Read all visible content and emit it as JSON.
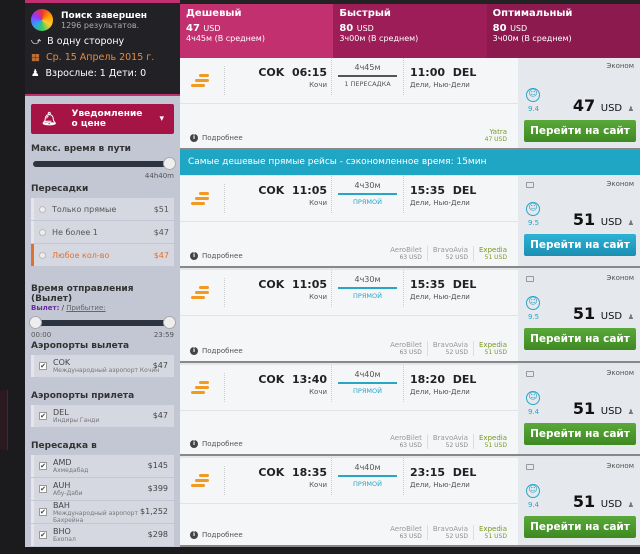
{
  "sidebar": {
    "status_title": "Поиск завершен",
    "status_sub": "1296 результатов.",
    "trip_type": "В одну сторону",
    "date": "Ср. 15 Апрель 2015 г.",
    "passengers": "Взрослые: 1 Дети: 0",
    "notify_label": "Уведомление о цене",
    "max_time_title": "Макс. время в пути",
    "max_time_value": "44h40m",
    "stops_title": "Пересадки",
    "stops": [
      {
        "label": "Только прямые",
        "price": "$51"
      },
      {
        "label": "Не более 1",
        "price": "$47"
      },
      {
        "label": "Любое кол-во",
        "price": "$47",
        "selected": true
      }
    ],
    "dep_time_title": "Время отправления (Вылет)",
    "dep_link": "Вылет:",
    "sep": " / ",
    "arr_link": "Прибытие:",
    "time_min": "00:00",
    "time_max": "23:59",
    "dep_airports_title": "Аэропорты вылета",
    "dep_airports": [
      {
        "code": "COK",
        "name": "Международный аэропорт Кочин",
        "price": "$47"
      }
    ],
    "arr_airports_title": "Аэропорты прилета",
    "arr_airports": [
      {
        "code": "DEL",
        "name": "Индиры Ганди",
        "price": "$47"
      }
    ],
    "transfer_title": "Пересадка в",
    "transfers": [
      {
        "code": "AMD",
        "name": "Ахмедабад",
        "price": "$145"
      },
      {
        "code": "AUH",
        "name": "Абу-Даби",
        "price": "$399"
      },
      {
        "code": "BAH",
        "name": "Международный аэропорт Бахрейна",
        "price": "$1,252"
      },
      {
        "code": "BHO",
        "name": "Бхопал",
        "price": "$298"
      }
    ]
  },
  "tabs": [
    {
      "title": "Дешевый",
      "price": "47",
      "cur": "USD",
      "dur": "4ч45м (В среднем)",
      "color": "#c2306f"
    },
    {
      "title": "Быстрый",
      "price": "80",
      "cur": "USD",
      "dur": "3ч00м (В среднем)",
      "color": "#9c1d57"
    },
    {
      "title": "Оптимальный",
      "price": "80",
      "cur": "USD",
      "dur": "3ч00м (В среднем)",
      "color": "#8c1a4f"
    }
  ],
  "banner": "Самые дешевые прямые рейсы - сэкономленное время: 15мин",
  "common": {
    "more": "Подробнее",
    "class": "Эконом",
    "go": "Перейти на сайт",
    "from_city": "Кочи",
    "to_city": "Дели, Нью-Дели",
    "usd": "USD"
  },
  "flights": [
    {
      "from": "COK",
      "dep": "06:15",
      "dur": "4ч45м",
      "stops": "1 ПЕРЕСАДКА",
      "arr": "11:00",
      "to": "DEL",
      "score": "9.4",
      "price": "47",
      "agents": [
        {
          "name": "Yatra",
          "price": "47 USD",
          "best": true
        }
      ],
      "button": "green"
    },
    {
      "from": "COK",
      "dep": "11:05",
      "dur": "4ч30м",
      "stops": "ПРЯМОЙ",
      "arr": "15:35",
      "to": "DEL",
      "score": "9.5",
      "price": "51",
      "agents": [
        {
          "name": "AeroBilet",
          "price": "63 USD"
        },
        {
          "name": "BravoAvia",
          "price": "52 USD"
        },
        {
          "name": "Expedia",
          "price": "51 USD",
          "best": true
        }
      ],
      "button": "blue"
    },
    {
      "from": "COK",
      "dep": "11:05",
      "dur": "4ч30м",
      "stops": "ПРЯМОЙ",
      "arr": "15:35",
      "to": "DEL",
      "score": "9.5",
      "price": "51",
      "agents": [
        {
          "name": "AeroBilet",
          "price": "63 USD"
        },
        {
          "name": "BravoAvia",
          "price": "52 USD"
        },
        {
          "name": "Expedia",
          "price": "51 USD",
          "best": true
        }
      ],
      "button": "green"
    },
    {
      "from": "COK",
      "dep": "13:40",
      "dur": "4ч40м",
      "stops": "ПРЯМОЙ",
      "arr": "18:20",
      "to": "DEL",
      "score": "9.4",
      "price": "51",
      "agents": [
        {
          "name": "AeroBilet",
          "price": "63 USD"
        },
        {
          "name": "BravoAvia",
          "price": "52 USD"
        },
        {
          "name": "Expedia",
          "price": "51 USD",
          "best": true
        }
      ],
      "button": "green"
    },
    {
      "from": "COK",
      "dep": "18:35",
      "dur": "4ч40м",
      "stops": "ПРЯМОЙ",
      "arr": "23:15",
      "to": "DEL",
      "score": "9.4",
      "price": "51",
      "agents": [
        {
          "name": "AeroBilet",
          "price": "63 USD"
        },
        {
          "name": "BravoAvia",
          "price": "52 USD"
        },
        {
          "name": "Expedia",
          "price": "51 USD",
          "best": true
        }
      ],
      "button": "green"
    }
  ]
}
